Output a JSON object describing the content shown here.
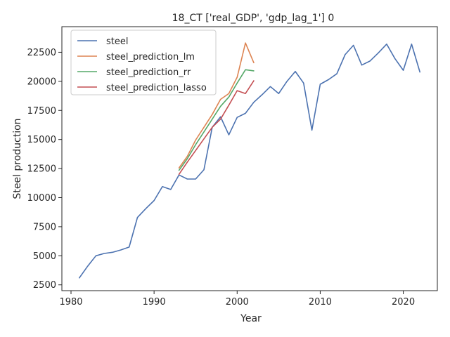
{
  "chart_data": {
    "type": "line",
    "title": "18_CT ['real_GDP', 'gdp_lag_1'] 0",
    "xlabel": "Year",
    "ylabel": "Steel production",
    "xlim": [
      1978.9,
      2024.1
    ],
    "ylim": [
      2000,
      24700
    ],
    "x_ticks": [
      1980,
      1990,
      2000,
      2010,
      2020
    ],
    "y_ticks": [
      2500,
      5000,
      7500,
      10000,
      12500,
      15000,
      17500,
      20000,
      22500
    ],
    "grid": false,
    "legend_position": "top-left",
    "series": [
      {
        "name": "steel",
        "color": "#4c72b0",
        "x": [
          1981,
          1982,
          1983,
          1984,
          1985,
          1986,
          1987,
          1988,
          1989,
          1990,
          1991,
          1992,
          1993,
          1994,
          1995,
          1996,
          1997,
          1998,
          1999,
          2000,
          2001,
          2002,
          2003,
          2004,
          2005,
          2006,
          2007,
          2008,
          2009,
          2010,
          2011,
          2012,
          2013,
          2014,
          2015,
          2016,
          2017,
          2018,
          2019,
          2020,
          2021,
          2022
        ],
        "y": [
          3100,
          4100,
          5000,
          5200,
          5300,
          5500,
          5750,
          8300,
          9050,
          9750,
          10950,
          10700,
          11950,
          11600,
          11600,
          12400,
          16050,
          16950,
          15400,
          16900,
          17250,
          18200,
          18850,
          19550,
          18950,
          20000,
          20850,
          19850,
          15800,
          19750,
          20150,
          20650,
          22300,
          23100,
          21400,
          21750,
          22450,
          23200,
          21950,
          20950,
          23200,
          20800
        ]
      },
      {
        "name": "steel_prediction_lm",
        "color": "#dd8452",
        "x": [
          1993,
          1994,
          1995,
          1996,
          1997,
          1998,
          1999,
          2000,
          2001,
          2002
        ],
        "y": [
          12550,
          13550,
          14950,
          16050,
          17150,
          18450,
          18950,
          20350,
          23300,
          21600
        ]
      },
      {
        "name": "steel_prediction_rr",
        "color": "#55a868",
        "x": [
          1993,
          1994,
          1995,
          1996,
          1997,
          1998,
          1999,
          2000,
          2001,
          2002
        ],
        "y": [
          12350,
          13350,
          14550,
          15650,
          16750,
          17850,
          18650,
          19850,
          21000,
          20900
        ]
      },
      {
        "name": "steel_prediction_lasso",
        "color": "#c44e52",
        "x": [
          1993,
          1994,
          1995,
          1996,
          1997,
          1998,
          1999,
          2000,
          2001,
          2002
        ],
        "y": [
          12000,
          13050,
          14050,
          15050,
          16050,
          16750,
          17950,
          19200,
          18950,
          20050
        ]
      }
    ]
  }
}
